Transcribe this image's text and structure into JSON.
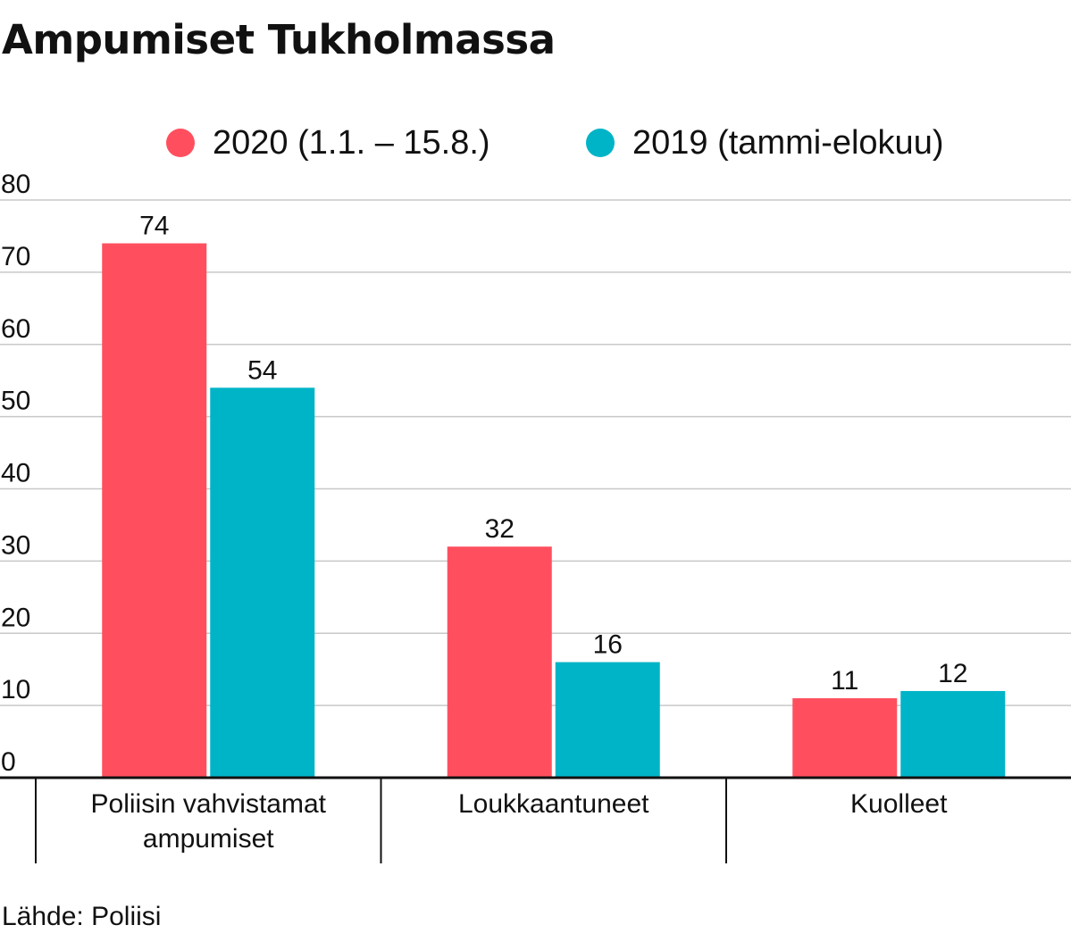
{
  "title": "Ampumiset Tukholmassa",
  "source": "Lähde: Poliisi",
  "legend": [
    {
      "label": "2020 (1.1. – 15.8.)",
      "color": "#ff4f5e"
    },
    {
      "label": "2019 (tammi-elokuu)",
      "color": "#00b4c8"
    }
  ],
  "chart_data": {
    "type": "bar",
    "title": "Ampumiset Tukholmassa",
    "categories": [
      [
        "Poliisin vahvistamat",
        "ampumiset"
      ],
      [
        "Loukkaantuneet"
      ],
      [
        "Kuolleet"
      ]
    ],
    "series": [
      {
        "name": "2020 (1.1. – 15.8.)",
        "color": "#ff4f5e",
        "values": [
          74,
          32,
          11
        ]
      },
      {
        "name": "2019 (tammi-elokuu)",
        "color": "#00b4c8",
        "values": [
          54,
          16,
          12
        ]
      }
    ],
    "ylim": [
      0,
      80
    ],
    "yticks": [
      0,
      10,
      20,
      30,
      40,
      50,
      60,
      70,
      80
    ],
    "grid": true,
    "legend_position": "top"
  }
}
